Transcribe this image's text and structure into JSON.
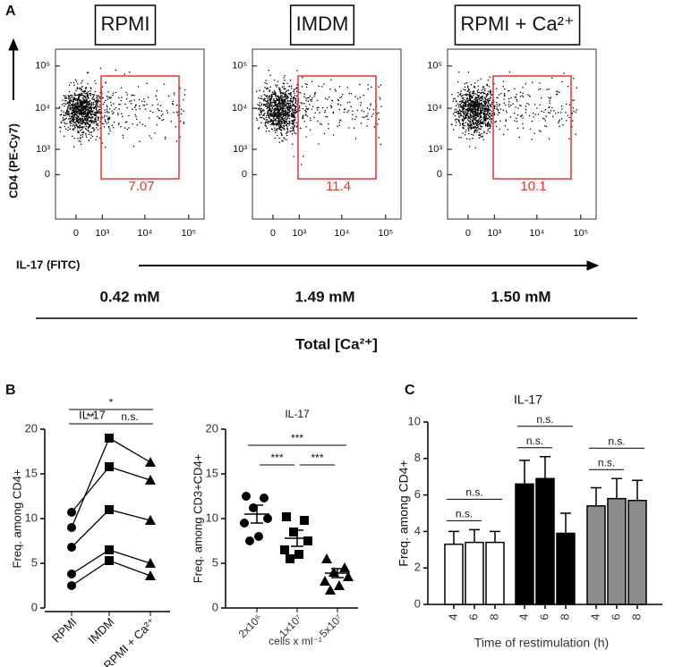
{
  "figure": {
    "panel_labels": [
      "A",
      "B",
      "C"
    ],
    "y_axis_label": "CD4 (PE-Cy7)",
    "x_axis_label": "IL-17 (FITC)",
    "concentrations": [
      "0.42 mM",
      "1.49 mM",
      "1.50 mM"
    ],
    "concentration_title": "Total [Ca²⁺]"
  },
  "chart_data": [
    {
      "type": "flow",
      "title": "RPMI",
      "gate_value": 7.07,
      "scale": "biexponential",
      "xlim": [
        -700,
        224000
      ],
      "ylim": [
        -3000,
        250000
      ],
      "xticks": [
        0,
        {
          "value": 1000,
          "label": "10³"
        },
        {
          "value": 10000,
          "label": "10⁴"
        },
        {
          "value": 100000,
          "label": "10⁵"
        }
      ],
      "yticks": [
        0,
        {
          "value": 1000,
          "label": "10³"
        },
        {
          "value": 10000,
          "label": "10⁴"
        },
        {
          "value": 100000,
          "label": "10⁵"
        }
      ],
      "gate_color": "#e8322a"
    },
    {
      "type": "flow",
      "title": "IMDM",
      "gate_value": 11.4,
      "scale": "biexponential",
      "xlim": [
        -700,
        224000
      ],
      "ylim": [
        -3000,
        250000
      ],
      "xticks": [
        0,
        {
          "value": 1000,
          "label": "10³"
        },
        {
          "value": 10000,
          "label": "10⁴"
        },
        {
          "value": 100000,
          "label": "10⁵"
        }
      ],
      "yticks": [
        0,
        {
          "value": 1000,
          "label": "10³"
        },
        {
          "value": 10000,
          "label": "10⁴"
        },
        {
          "value": 100000,
          "label": "10⁵"
        }
      ],
      "gate_color": "#e8322a"
    },
    {
      "type": "flow",
      "title": "RPMI + Ca²⁺",
      "gate_value": 10.1,
      "scale": "biexponential",
      "xlim": [
        -700,
        224000
      ],
      "ylim": [
        -3000,
        250000
      ],
      "xticks": [
        0,
        {
          "value": 1000,
          "label": "10³"
        },
        {
          "value": 10000,
          "label": "10⁴"
        },
        {
          "value": 100000,
          "label": "10⁵"
        }
      ],
      "yticks": [
        0,
        {
          "value": 1000,
          "label": "10³"
        },
        {
          "value": 10000,
          "label": "10⁴"
        },
        {
          "value": 100000,
          "label": "10⁵"
        }
      ],
      "gate_color": "#e8322a"
    },
    {
      "type": "paired-line",
      "title": "IL-17",
      "ylabel": "Freq. among CD4+",
      "categories": [
        "RPMI",
        "IMDM",
        "RPMI + Ca²⁺"
      ],
      "markers": [
        "circle",
        "square",
        "triangle"
      ],
      "color": "#000000",
      "ylim": [
        0,
        20
      ],
      "yticks": [
        0,
        5,
        10,
        15,
        20
      ],
      "series": [
        {
          "values": [
            10.7,
            15.8,
            14.3
          ]
        },
        {
          "values": [
            9.0,
            19.0,
            16.3
          ]
        },
        {
          "values": [
            6.8,
            11.0,
            9.8
          ]
        },
        {
          "values": [
            3.8,
            6.5,
            5.0
          ]
        },
        {
          "values": [
            2.5,
            5.3,
            3.6
          ]
        }
      ],
      "annotations": [
        {
          "text": "**",
          "between": [
            0,
            1
          ]
        },
        {
          "text": "n.s.",
          "between": [
            1,
            2
          ]
        },
        {
          "text": "*",
          "between": [
            0,
            2
          ]
        }
      ]
    },
    {
      "type": "dot-plot",
      "title": "IL-17",
      "ylabel": "Freq. among CD3+CD4+",
      "xlabel": "cells x ml⁻¹",
      "categories": [
        "2x10⁶",
        "1x10⁷",
        "5x10⁷"
      ],
      "markers": [
        "circle",
        "square",
        "triangle"
      ],
      "color": "#000000",
      "ylim": [
        0,
        20
      ],
      "yticks": [
        0,
        5,
        10,
        15,
        20
      ],
      "groups": [
        {
          "values": [
            12.5,
            12.3,
            11.2,
            10.0,
            9.5,
            8.0,
            7.5
          ],
          "mean": 10.5,
          "sem": 1.0
        },
        {
          "values": [
            10.2,
            9.8,
            8.5,
            7.5,
            6.5,
            6.0,
            5.5
          ],
          "mean": 7.8,
          "sem": 0.9
        },
        {
          "values": [
            5.5,
            4.5,
            4.0,
            3.5,
            3.0,
            2.5,
            2.0
          ],
          "mean": 3.9,
          "sem": 0.5
        }
      ],
      "annotations": [
        {
          "text": "***",
          "between": [
            0,
            1
          ]
        },
        {
          "text": "***",
          "between": [
            1,
            2
          ]
        },
        {
          "text": "***",
          "between": [
            0,
            2
          ]
        }
      ]
    },
    {
      "type": "bar",
      "title": "IL-17",
      "ylabel": "Freq. among CD4+",
      "xlabel": "Time of restimulation (h)",
      "categories": [
        "4",
        "6",
        "8"
      ],
      "ylim": [
        0,
        10
      ],
      "yticks": [
        0,
        2,
        4,
        6,
        8,
        10
      ],
      "series": [
        {
          "color": "#ffffff",
          "values": [
            3.3,
            3.4,
            3.4
          ],
          "errors": [
            0.7,
            0.7,
            0.6
          ],
          "annotations": [
            {
              "text": "n.s.",
              "between": [
                0,
                1
              ]
            },
            {
              "text": "n.s.",
              "between": [
                0,
                2
              ]
            }
          ]
        },
        {
          "color": "#000000",
          "values": [
            6.6,
            6.9,
            3.9
          ],
          "errors": [
            1.3,
            1.2,
            1.1
          ],
          "annotations": [
            {
              "text": "n.s.",
              "between": [
                0,
                1
              ]
            },
            {
              "text": "n.s.",
              "between": [
                0,
                2
              ]
            }
          ]
        },
        {
          "color": "#8c8c8c",
          "values": [
            5.4,
            5.8,
            5.7
          ],
          "errors": [
            1.0,
            1.1,
            1.1
          ],
          "annotations": [
            {
              "text": "n.s.",
              "between": [
                0,
                1
              ]
            },
            {
              "text": "n.s.",
              "between": [
                0,
                2
              ]
            }
          ]
        }
      ]
    }
  ]
}
